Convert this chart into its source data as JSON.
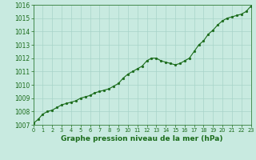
{
  "x": [
    0,
    0.5,
    1,
    1.5,
    2,
    2.5,
    3,
    3.5,
    4,
    4.5,
    5,
    5.5,
    6,
    6.5,
    7,
    7.5,
    8,
    8.5,
    9,
    9.5,
    10,
    10.5,
    11,
    11.5,
    12,
    12.5,
    13,
    13.5,
    14,
    14.5,
    15,
    15.5,
    16,
    16.5,
    17,
    17.5,
    18,
    18.5,
    19,
    19.5,
    20,
    20.5,
    21,
    21.5,
    22,
    22.5,
    23
  ],
  "y": [
    1007.1,
    1007.4,
    1007.8,
    1008.0,
    1008.1,
    1008.3,
    1008.5,
    1008.6,
    1008.7,
    1008.8,
    1009.0,
    1009.1,
    1009.2,
    1009.4,
    1009.5,
    1009.6,
    1009.7,
    1009.9,
    1010.1,
    1010.5,
    1010.8,
    1011.0,
    1011.2,
    1011.4,
    1011.8,
    1012.0,
    1012.0,
    1011.8,
    1011.7,
    1011.6,
    1011.5,
    1011.6,
    1011.8,
    1012.0,
    1012.5,
    1013.0,
    1013.3,
    1013.8,
    1014.1,
    1014.5,
    1014.8,
    1015.0,
    1015.1,
    1015.2,
    1015.3,
    1015.5,
    1015.9
  ],
  "line_color": "#1a6b1a",
  "marker_color": "#1a6b1a",
  "bg_color": "#c8eae0",
  "grid_color": "#a8d4c8",
  "xlabel": "Graphe pression niveau de la mer (hPa)",
  "xlabel_color": "#1a6b1a",
  "tick_color": "#1a6b1a",
  "xtick_labels": [
    "0",
    "1",
    "2",
    "3",
    "4",
    "5",
    "6",
    "7",
    "8",
    "9",
    "10",
    "11",
    "12",
    "13",
    "14",
    "15",
    "16",
    "17",
    "18",
    "19",
    "20",
    "21",
    "22",
    "23"
  ],
  "ylim": [
    1007,
    1016
  ],
  "xlim": [
    0,
    23
  ],
  "yticks": [
    1007,
    1008,
    1009,
    1010,
    1011,
    1012,
    1013,
    1014,
    1015,
    1016
  ],
  "xticks": [
    0,
    1,
    2,
    3,
    4,
    5,
    6,
    7,
    8,
    9,
    10,
    11,
    12,
    13,
    14,
    15,
    16,
    17,
    18,
    19,
    20,
    21,
    22,
    23
  ]
}
